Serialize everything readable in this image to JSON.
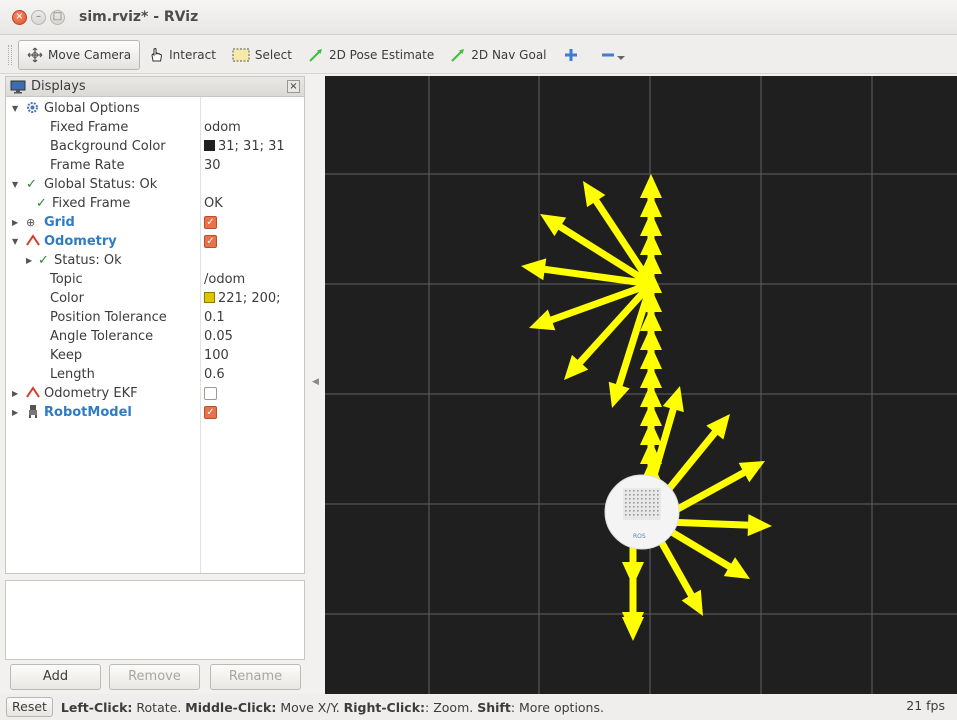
{
  "window": {
    "title": "sim.rviz* - RViz",
    "close_glyph": "×",
    "min_glyph": "–",
    "max_glyph": "□"
  },
  "toolbar": {
    "move_camera": "Move Camera",
    "interact": "Interact",
    "select": "Select",
    "pose_estimate": "2D Pose Estimate",
    "nav_goal": "2D Nav Goal"
  },
  "displays": {
    "title": "Displays",
    "close_glyph": "×",
    "global_options": "Global Options",
    "fixed_frame": {
      "label": "Fixed Frame",
      "value": "odom"
    },
    "background_color": {
      "label": "Background Color",
      "value": "31; 31; 31",
      "swatch": "#1f1f1f"
    },
    "frame_rate": {
      "label": "Frame Rate",
      "value": "30"
    },
    "global_status": "Global Status: Ok",
    "status_fixed_frame": {
      "label": "Fixed Frame",
      "value": "OK"
    },
    "grid": "Grid",
    "odometry": {
      "label": "Odometry",
      "status": "Status: Ok",
      "topic": {
        "label": "Topic",
        "value": "/odom"
      },
      "color": {
        "label": "Color",
        "value": "221; 200;",
        "swatch": "#ddc800"
      },
      "position_tolerance": {
        "label": "Position Tolerance",
        "value": "0.1"
      },
      "angle_tolerance": {
        "label": "Angle Tolerance",
        "value": "0.05"
      },
      "keep": {
        "label": "Keep",
        "value": "100"
      },
      "length": {
        "label": "Length",
        "value": "0.6"
      }
    },
    "odometry_ekf": "Odometry EKF",
    "robot_model": "RobotModel"
  },
  "buttons": {
    "add": "Add",
    "remove": "Remove",
    "rename": "Rename"
  },
  "viewport": {
    "arrow_color": "#ffff00",
    "grid_color": "#a0a0a0",
    "robot_logo": "ROS"
  },
  "statusbar": {
    "reset": "Reset",
    "left_click": "Left-Click:",
    "left_action": " Rotate. ",
    "middle_click": "Middle-Click:",
    "middle_action": " Move X/Y. ",
    "right_click": "Right-Click:",
    "right_action": ": Zoom. ",
    "shift": "Shift",
    "shift_action": ": More options.",
    "fps": "21 fps"
  }
}
